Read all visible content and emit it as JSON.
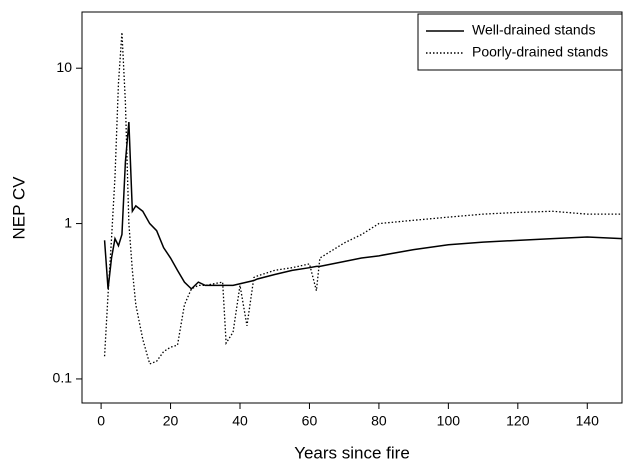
{
  "chart_data": {
    "type": "line",
    "x_label": "Years since fire",
    "y_label": "NEP CV",
    "x": [
      1,
      2,
      3,
      4,
      5,
      6,
      7,
      8,
      9,
      10,
      12,
      14,
      16,
      18,
      20,
      22,
      24,
      26,
      28,
      30,
      35,
      36,
      38,
      40,
      42,
      44,
      45,
      50,
      55,
      60,
      62,
      63,
      70,
      75,
      80,
      90,
      100,
      110,
      120,
      130,
      140,
      150
    ],
    "series": [
      {
        "name": "Well-drained stands",
        "color": "#000000",
        "style": "solid",
        "values": [
          0.78,
          0.38,
          0.6,
          0.8,
          0.72,
          0.85,
          2.5,
          4.5,
          1.2,
          1.3,
          1.2,
          1.0,
          0.9,
          0.7,
          0.6,
          0.5,
          0.42,
          0.38,
          0.42,
          0.4,
          0.4,
          0.4,
          0.4,
          0.41,
          0.42,
          0.43,
          0.44,
          0.47,
          0.5,
          0.52,
          0.53,
          0.53,
          0.57,
          0.6,
          0.62,
          0.68,
          0.73,
          0.76,
          0.78,
          0.8,
          0.82,
          0.8
        ]
      },
      {
        "name": "Poorly-drained stands",
        "color": "#000000",
        "style": "dotted",
        "values": [
          0.14,
          0.35,
          0.8,
          2,
          8,
          17,
          6,
          1.0,
          0.5,
          0.3,
          0.18,
          0.125,
          0.13,
          0.15,
          0.16,
          0.165,
          0.3,
          0.38,
          0.4,
          0.4,
          0.42,
          0.17,
          0.2,
          0.4,
          0.22,
          0.45,
          0.46,
          0.5,
          0.52,
          0.55,
          0.37,
          0.6,
          0.75,
          0.85,
          1.0,
          1.05,
          1.1,
          1.15,
          1.18,
          1.2,
          1.15,
          1.15
        ]
      }
    ],
    "xlim": [
      -5.5,
      150
    ],
    "xticks": [
      0,
      20,
      40,
      60,
      80,
      100,
      120,
      140
    ],
    "ylim": [
      0.07,
      23
    ],
    "yticks": [
      0.1,
      1,
      10
    ],
    "log_y": true,
    "grid": false,
    "legend": "upper right"
  }
}
